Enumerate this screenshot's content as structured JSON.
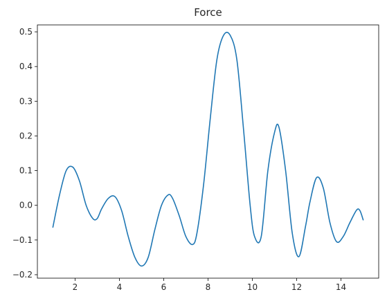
{
  "chart_data": {
    "type": "line",
    "title": "Force",
    "xlabel": "",
    "ylabel": "",
    "xlim": [
      0.3,
      15.7
    ],
    "ylim": [
      -0.21,
      0.52
    ],
    "grid": false,
    "xticks": [
      2,
      4,
      6,
      8,
      10,
      12,
      14
    ],
    "xtick_labels": [
      "2",
      "4",
      "6",
      "8",
      "10",
      "12",
      "14"
    ],
    "yticks": [
      -0.2,
      -0.1,
      0.0,
      0.1,
      0.2,
      0.3,
      0.4,
      0.5
    ],
    "ytick_labels": [
      "−0.2",
      "−0.1",
      "0.0",
      "0.1",
      "0.2",
      "0.3",
      "0.4",
      "0.5"
    ],
    "series": [
      {
        "color": "#1f77b4",
        "x": [
          1.0,
          1.3,
          1.6,
          1.9,
          2.2,
          2.5,
          2.8,
          3.0,
          3.2,
          3.5,
          3.8,
          4.1,
          4.4,
          4.7,
          5.0,
          5.3,
          5.6,
          5.9,
          6.2,
          6.4,
          6.7,
          7.0,
          7.3,
          7.5,
          7.8,
          8.1,
          8.4,
          8.7,
          9.0,
          9.3,
          9.6,
          9.9,
          10.1,
          10.4,
          10.7,
          11.0,
          11.2,
          11.5,
          11.8,
          12.1,
          12.4,
          12.6,
          12.9,
          13.2,
          13.5,
          13.8,
          14.1,
          14.4,
          14.7,
          14.85,
          15.0
        ],
        "y": [
          -0.063,
          0.03,
          0.1,
          0.11,
          0.07,
          0.0,
          -0.038,
          -0.038,
          -0.01,
          0.02,
          0.025,
          -0.015,
          -0.09,
          -0.15,
          -0.175,
          -0.15,
          -0.07,
          0.0,
          0.03,
          0.02,
          -0.03,
          -0.09,
          -0.113,
          -0.08,
          0.06,
          0.25,
          0.42,
          0.49,
          0.49,
          0.42,
          0.22,
          0.0,
          -0.09,
          -0.09,
          0.1,
          0.21,
          0.225,
          0.1,
          -0.08,
          -0.148,
          -0.06,
          0.01,
          0.08,
          0.05,
          -0.05,
          -0.105,
          -0.09,
          -0.05,
          -0.014,
          -0.015,
          -0.042
        ]
      }
    ]
  }
}
